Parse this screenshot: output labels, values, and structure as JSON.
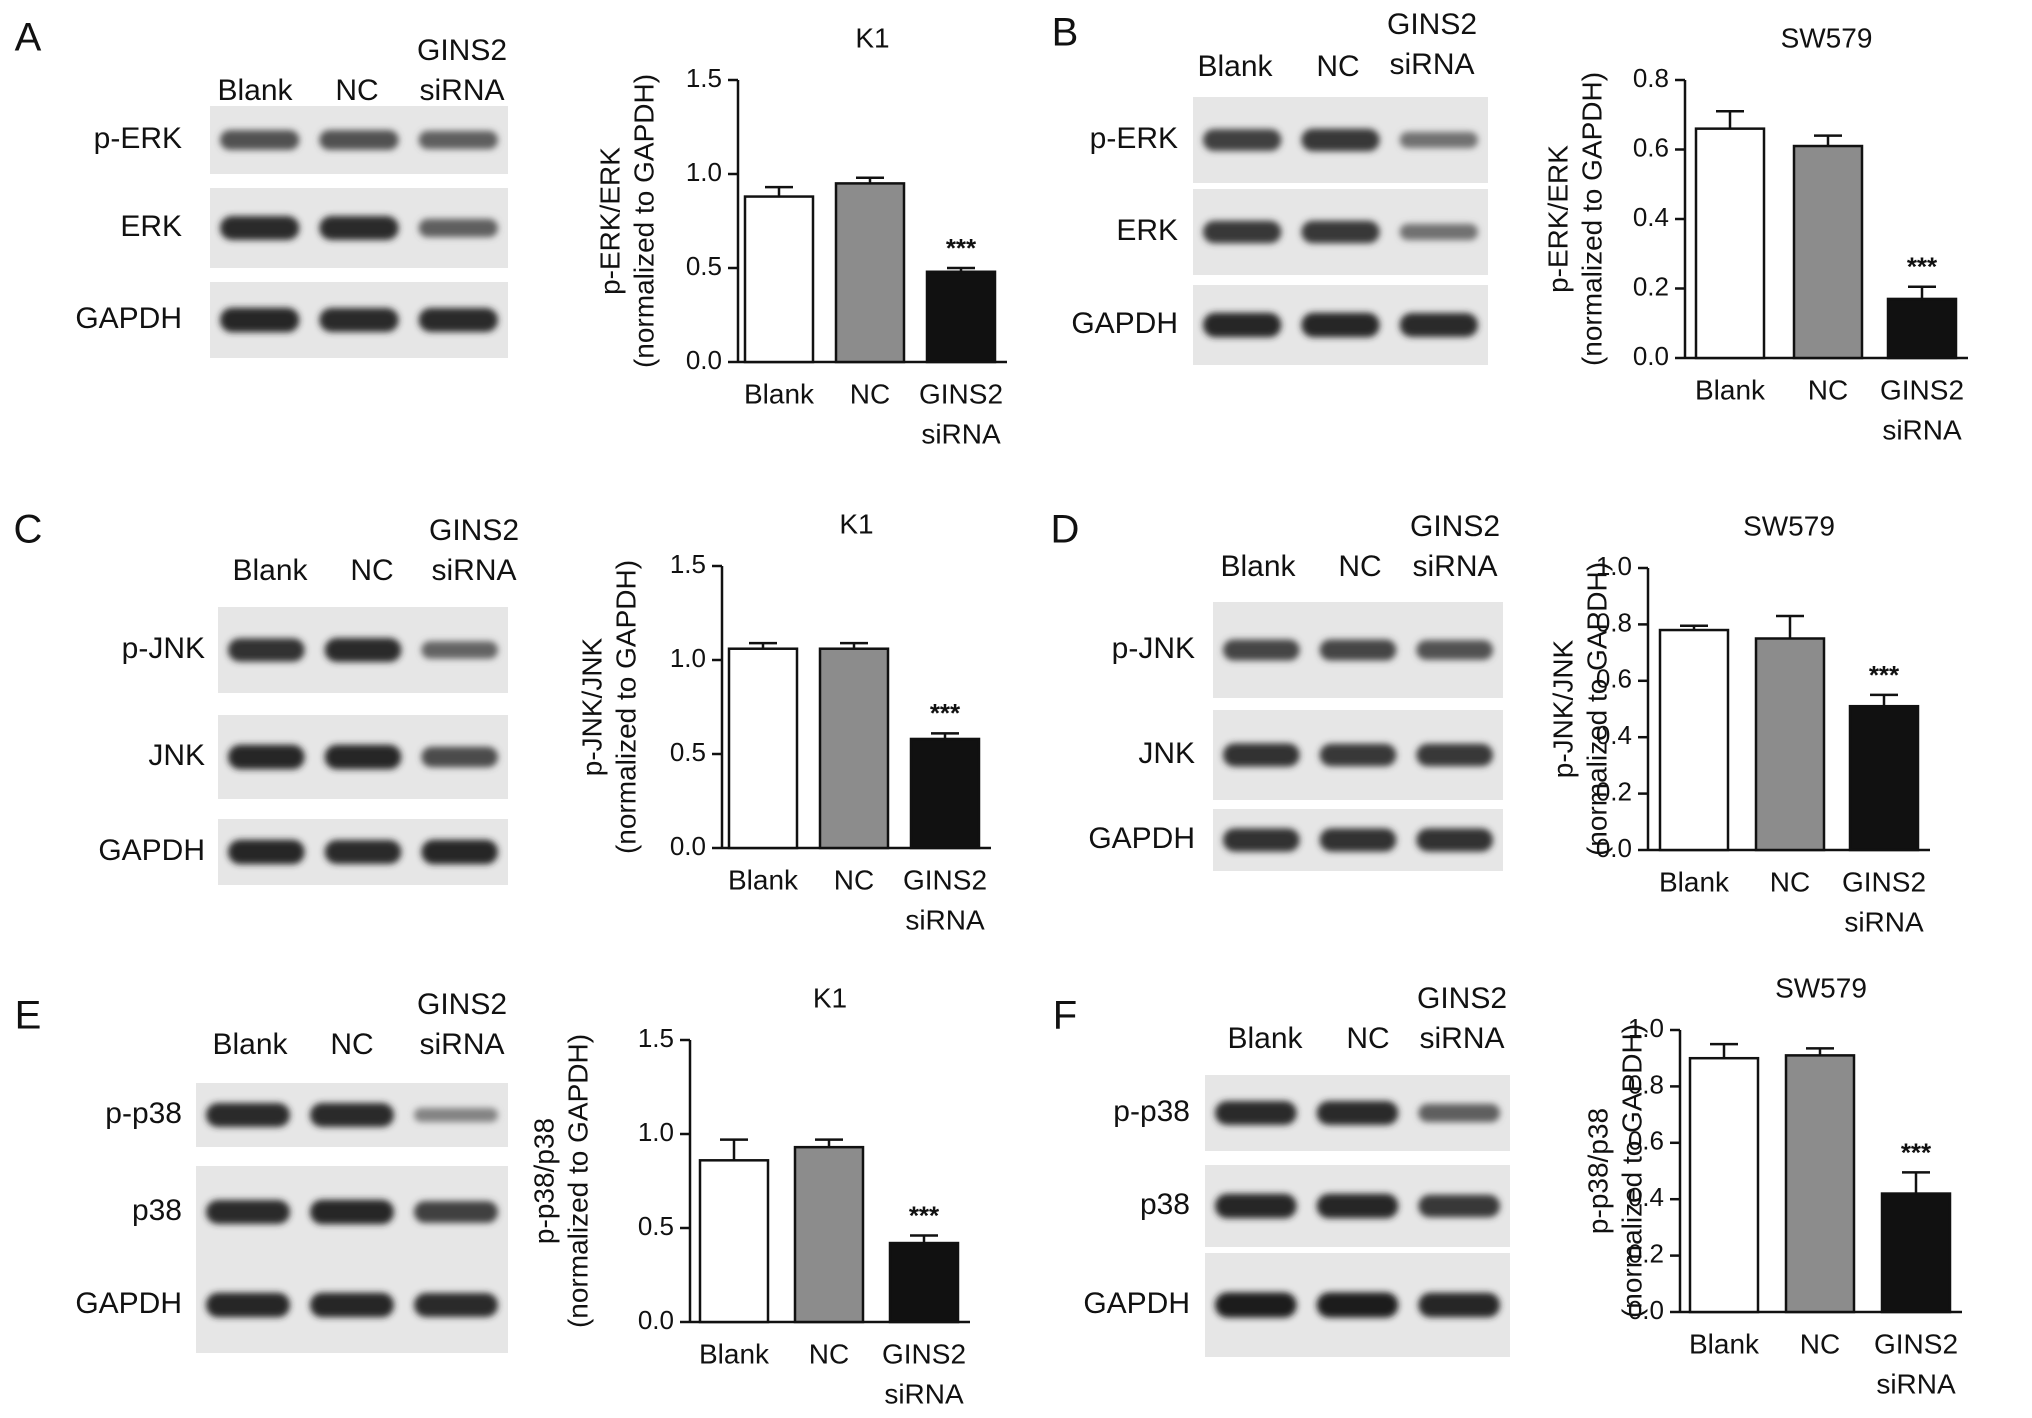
{
  "panels": [
    {
      "letter": "A",
      "lanes": [
        "Blank",
        "NC",
        "GINS2",
        "siRNA"
      ],
      "blot_rows": [
        "p-ERK",
        "ERK",
        "GAPDH"
      ],
      "bands": [
        [
          0.55,
          0.55,
          0.45
        ],
        [
          0.85,
          0.85,
          0.45
        ],
        [
          0.9,
          0.85,
          0.85
        ]
      ]
    },
    {
      "letter": "B",
      "lanes": [
        "Blank",
        "NC",
        "GINS2",
        "siRNA"
      ],
      "blot_rows": [
        "p-ERK",
        "ERK",
        "GAPDH"
      ],
      "bands": [
        [
          0.7,
          0.75,
          0.3
        ],
        [
          0.75,
          0.75,
          0.3
        ],
        [
          0.9,
          0.9,
          0.85
        ]
      ]
    },
    {
      "letter": "C",
      "lanes": [
        "Blank",
        "NC",
        "GINS2",
        "siRNA"
      ],
      "blot_rows": [
        "p-JNK",
        "JNK",
        "GAPDH"
      ],
      "bands": [
        [
          0.8,
          0.85,
          0.4
        ],
        [
          0.9,
          0.9,
          0.6
        ],
        [
          0.9,
          0.85,
          0.9
        ]
      ]
    },
    {
      "letter": "D",
      "lanes": [
        "Blank",
        "NC",
        "GINS2",
        "siRNA"
      ],
      "blot_rows": [
        "p-JNK",
        "JNK",
        "GAPDH"
      ],
      "bands": [
        [
          0.65,
          0.65,
          0.55
        ],
        [
          0.8,
          0.75,
          0.75
        ],
        [
          0.8,
          0.8,
          0.8
        ]
      ]
    },
    {
      "letter": "E",
      "lanes": [
        "Blank",
        "NC",
        "GINS2",
        "siRNA"
      ],
      "blot_rows": [
        "p-p38",
        "p38",
        "GAPDH"
      ],
      "bands": [
        [
          0.85,
          0.85,
          0.15
        ],
        [
          0.85,
          0.9,
          0.7
        ],
        [
          0.9,
          0.9,
          0.85
        ]
      ]
    },
    {
      "letter": "F",
      "lanes": [
        "Blank",
        "NC",
        "GINS2",
        "siRNA"
      ],
      "blot_rows": [
        "p-p38",
        "p38",
        "GAPDH"
      ],
      "bands": [
        [
          0.85,
          0.85,
          0.45
        ],
        [
          0.9,
          0.9,
          0.75
        ],
        [
          0.95,
          0.95,
          0.9
        ]
      ]
    }
  ],
  "chart_data": [
    {
      "type": "bar",
      "title": "K1",
      "categories": [
        "Blank",
        "NC",
        "GINS2 siRNA"
      ],
      "category_lines": [
        [
          "Blank"
        ],
        [
          "NC"
        ],
        [
          "GINS2",
          "siRNA"
        ]
      ],
      "values": [
        0.88,
        0.95,
        0.48
      ],
      "errors": [
        0.05,
        0.03,
        0.02
      ],
      "significance": [
        "",
        "",
        "***"
      ],
      "ylabel": "p-ERK/ERK",
      "ylabel2": "(normalized to GAPDH)",
      "ylim": [
        0,
        1.5
      ],
      "yticks": [
        "0.0",
        "0.5",
        "1.0",
        "1.5"
      ],
      "colors": [
        "#ffffff",
        "#8c8c8c",
        "#111111"
      ]
    },
    {
      "type": "bar",
      "title": "SW579",
      "categories": [
        "Blank",
        "NC",
        "GINS2 siRNA"
      ],
      "category_lines": [
        [
          "Blank"
        ],
        [
          "NC"
        ],
        [
          "GINS2",
          "siRNA"
        ]
      ],
      "values": [
        0.66,
        0.61,
        0.17
      ],
      "errors": [
        0.05,
        0.03,
        0.035
      ],
      "significance": [
        "",
        "",
        "***"
      ],
      "ylabel": "p-ERK/ERK",
      "ylabel2": "(normalized to GAPDH)",
      "ylim": [
        0,
        0.8
      ],
      "yticks": [
        "0.0",
        "0.2",
        "0.4",
        "0.6",
        "0.8"
      ],
      "colors": [
        "#ffffff",
        "#8c8c8c",
        "#111111"
      ]
    },
    {
      "type": "bar",
      "title": "K1",
      "categories": [
        "Blank",
        "NC",
        "GINS2 siRNA"
      ],
      "category_lines": [
        [
          "Blank"
        ],
        [
          "NC"
        ],
        [
          "GINS2",
          "siRNA"
        ]
      ],
      "values": [
        1.06,
        1.06,
        0.58
      ],
      "errors": [
        0.03,
        0.03,
        0.03
      ],
      "significance": [
        "",
        "",
        "***"
      ],
      "ylabel": "p-JNK/JNK",
      "ylabel2": "(normalized to GAPDH)",
      "ylim": [
        0,
        1.5
      ],
      "yticks": [
        "0.0",
        "0.5",
        "1.0",
        "1.5"
      ],
      "colors": [
        "#ffffff",
        "#8c8c8c",
        "#111111"
      ]
    },
    {
      "type": "bar",
      "title": "SW579",
      "categories": [
        "Blank",
        "NC",
        "GINS2 siRNA"
      ],
      "category_lines": [
        [
          "Blank"
        ],
        [
          "NC"
        ],
        [
          "GINS2",
          "siRNA"
        ]
      ],
      "values": [
        0.78,
        0.75,
        0.51
      ],
      "errors": [
        0.015,
        0.08,
        0.04
      ],
      "significance": [
        "",
        "",
        "***"
      ],
      "ylabel": "p-JNK/JNK",
      "ylabel2": "(normalized to GAPDH)",
      "ylim": [
        0,
        1.0
      ],
      "yticks": [
        "0.0",
        "0.2",
        "0.4",
        "0.6",
        "0.8",
        "1.0"
      ],
      "colors": [
        "#ffffff",
        "#8c8c8c",
        "#111111"
      ]
    },
    {
      "type": "bar",
      "title": "K1",
      "categories": [
        "Blank",
        "NC",
        "GINS2 siRNA"
      ],
      "category_lines": [
        [
          "Blank"
        ],
        [
          "NC"
        ],
        [
          "GINS2",
          "siRNA"
        ]
      ],
      "values": [
        0.86,
        0.93,
        0.42
      ],
      "errors": [
        0.11,
        0.04,
        0.04
      ],
      "significance": [
        "",
        "",
        "***"
      ],
      "ylabel": "p-p38/p38",
      "ylabel2": "(normalized to GAPDH)",
      "ylim": [
        0,
        1.5
      ],
      "yticks": [
        "0.0",
        "0.5",
        "1.0",
        "1.5"
      ],
      "colors": [
        "#ffffff",
        "#8c8c8c",
        "#111111"
      ]
    },
    {
      "type": "bar",
      "title": "SW579",
      "categories": [
        "Blank",
        "NC",
        "GINS2 siRNA"
      ],
      "category_lines": [
        [
          "Blank"
        ],
        [
          "NC"
        ],
        [
          "GINS2",
          "siRNA"
        ]
      ],
      "values": [
        0.9,
        0.91,
        0.42
      ],
      "errors": [
        0.05,
        0.025,
        0.075
      ],
      "significance": [
        "",
        "",
        "***"
      ],
      "ylabel": "p-p38/p38",
      "ylabel2": "(normalized to GAPDH)",
      "ylim": [
        0,
        1.0
      ],
      "yticks": [
        "0.0",
        "0.2",
        "0.4",
        "0.6",
        "0.8",
        "1.0"
      ],
      "colors": [
        "#ffffff",
        "#8c8c8c",
        "#111111"
      ]
    }
  ]
}
